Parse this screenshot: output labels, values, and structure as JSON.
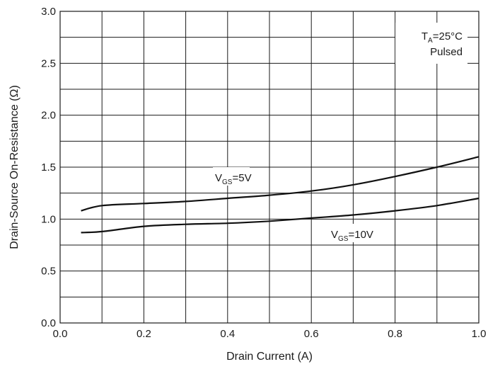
{
  "chart_data": {
    "type": "line",
    "xlabel": "Drain Current (A)",
    "ylabel": "Drain-Source On-Resistance (Ω)",
    "xlim": [
      0.0,
      1.0
    ],
    "ylim": [
      0.0,
      3.0
    ],
    "x_ticks": [
      "0.0",
      "0.2",
      "0.4",
      "0.6",
      "0.8",
      "1.0"
    ],
    "y_ticks": [
      "0.0",
      "0.5",
      "1.0",
      "1.5",
      "2.0",
      "2.5",
      "3.0"
    ],
    "grid": true,
    "series": [
      {
        "label_main": "V",
        "label_sub": "GS",
        "label_rest": "=5V",
        "x": [
          0.05,
          0.1,
          0.2,
          0.3,
          0.4,
          0.5,
          0.6,
          0.7,
          0.8,
          0.9,
          1.0
        ],
        "values": [
          1.08,
          1.13,
          1.15,
          1.17,
          1.2,
          1.23,
          1.27,
          1.33,
          1.41,
          1.5,
          1.6
        ]
      },
      {
        "label_main": "V",
        "label_sub": "GS",
        "label_rest": "=10V",
        "x": [
          0.05,
          0.1,
          0.2,
          0.3,
          0.4,
          0.5,
          0.6,
          0.7,
          0.8,
          0.9,
          1.0
        ],
        "values": [
          0.87,
          0.88,
          0.93,
          0.95,
          0.96,
          0.98,
          1.01,
          1.04,
          1.08,
          1.13,
          1.2
        ]
      }
    ],
    "annotation": {
      "line1_main": "T",
      "line1_sub": "A",
      "line1_rest": "=25°C",
      "line2": "Pulsed"
    }
  }
}
